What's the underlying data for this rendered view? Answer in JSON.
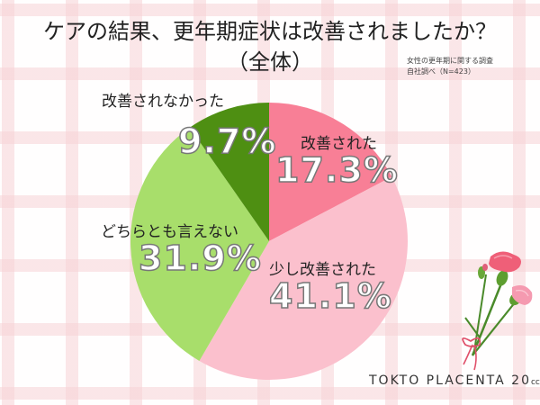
{
  "chart_data": {
    "type": "pie",
    "title": "ケアの結果、更年期症状は改善されましたか？",
    "subtitle": "（全体）",
    "source_note": [
      "女性の更年期に関する調査",
      "自社調べ（N=423）"
    ],
    "start_angle_deg": 0,
    "direction": "clockwise",
    "categories": [
      "改善された",
      "少し改善された",
      "どちらとも言えない",
      "改善されなかった"
    ],
    "values": [
      17.3,
      41.1,
      31.9,
      9.7
    ],
    "labels": [
      "17.3%",
      "41.1%",
      "31.9%",
      "9.7%"
    ],
    "colors": [
      "#f87f96",
      "#fbc0cd",
      "#a8de6b",
      "#4e8f12"
    ],
    "legend": "none (labels on slices)"
  },
  "header": {
    "title": "ケアの結果、更年期症状は改善されましたか？",
    "subtitle": "（全体）"
  },
  "source": {
    "line1": "女性の更年期に関する調査",
    "line2": "自社調べ（N=423）"
  },
  "slices": [
    {
      "label": "改善された",
      "pct": "17.3%"
    },
    {
      "label": "少し改善された",
      "pct": "41.1%"
    },
    {
      "label": "どちらとも言えない",
      "pct": "31.9%"
    },
    {
      "label": "改善されなかった",
      "pct": "9.7%"
    }
  ],
  "brand": {
    "name": "TOKTO PLACENTA 20",
    "suffix": "cc"
  }
}
